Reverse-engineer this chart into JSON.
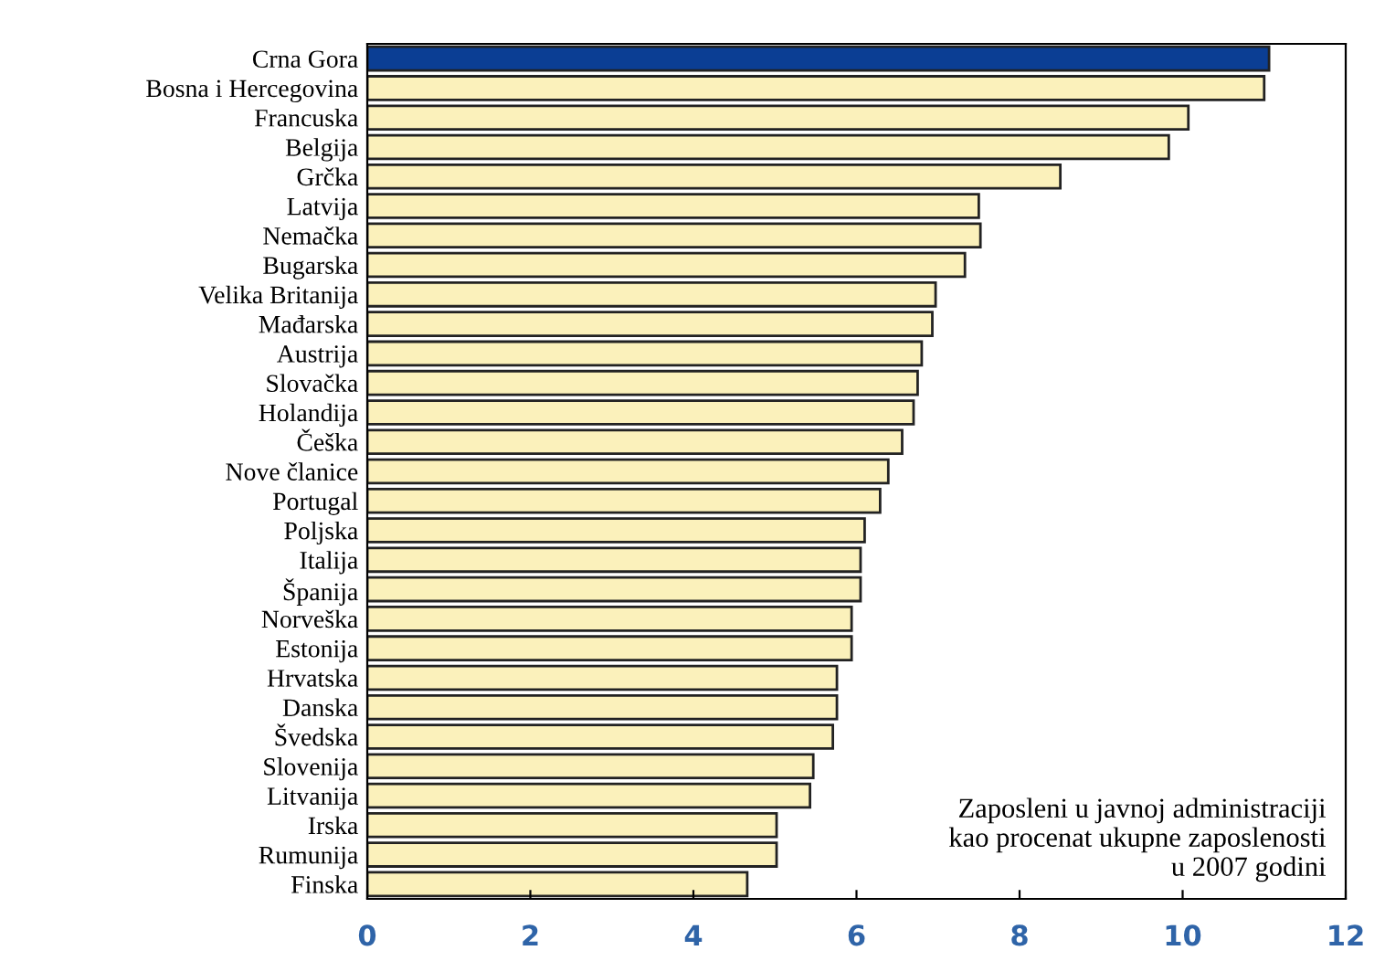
{
  "chart_data": {
    "type": "bar",
    "orientation": "horizontal",
    "categories": [
      "Crna Gora",
      "Bosna i Hercegovina",
      "Francuska",
      "Belgija",
      "Grčka",
      "Latvija",
      "Nemačka",
      "Bugarska",
      "Velika Britanija",
      "Mađarska",
      "Austrija",
      "Slovačka",
      "Holandija",
      "Češka",
      "Nove članice",
      "Portugal",
      "Poljska",
      "Italija",
      "Španija",
      "Norveška",
      "Estonija",
      "Hrvatska",
      "Danska",
      "Švedska",
      "Slovenija",
      "Litvanija",
      "Irska",
      "Rumunija",
      "Finska"
    ],
    "values": [
      11.06,
      11.0,
      10.07,
      9.83,
      8.5,
      7.5,
      7.52,
      7.33,
      6.97,
      6.93,
      6.8,
      6.75,
      6.7,
      6.56,
      6.39,
      6.29,
      6.1,
      6.05,
      6.05,
      5.94,
      5.94,
      5.76,
      5.76,
      5.71,
      5.47,
      5.43,
      5.02,
      5.02,
      4.66
    ],
    "colors": [
      "#0b3e94",
      "#fbf1bb",
      "#fbf1bb",
      "#fbf1bb",
      "#fbf1bb",
      "#fbf1bb",
      "#fbf1bb",
      "#fbf1bb",
      "#fbf1bb",
      "#fbf1bb",
      "#fbf1bb",
      "#fbf1bb",
      "#fbf1bb",
      "#fbf1bb",
      "#fbf1bb",
      "#fbf1bb",
      "#fbf1bb",
      "#fbf1bb",
      "#fbf1bb",
      "#fbf1bb",
      "#fbf1bb",
      "#fbf1bb",
      "#fbf1bb",
      "#fbf1bb",
      "#fbf1bb",
      "#fbf1bb",
      "#fbf1bb",
      "#fbf1bb",
      "#fbf1bb"
    ],
    "xlim": [
      0,
      12
    ],
    "xticks": [
      0,
      2,
      4,
      6,
      8,
      10,
      12
    ],
    "grid": false,
    "legend": false,
    "annotations": [
      "Zaposleni u javnoj administraciji\nkao procenat ukupne zaposlenosti\nu 2007 godini"
    ]
  }
}
